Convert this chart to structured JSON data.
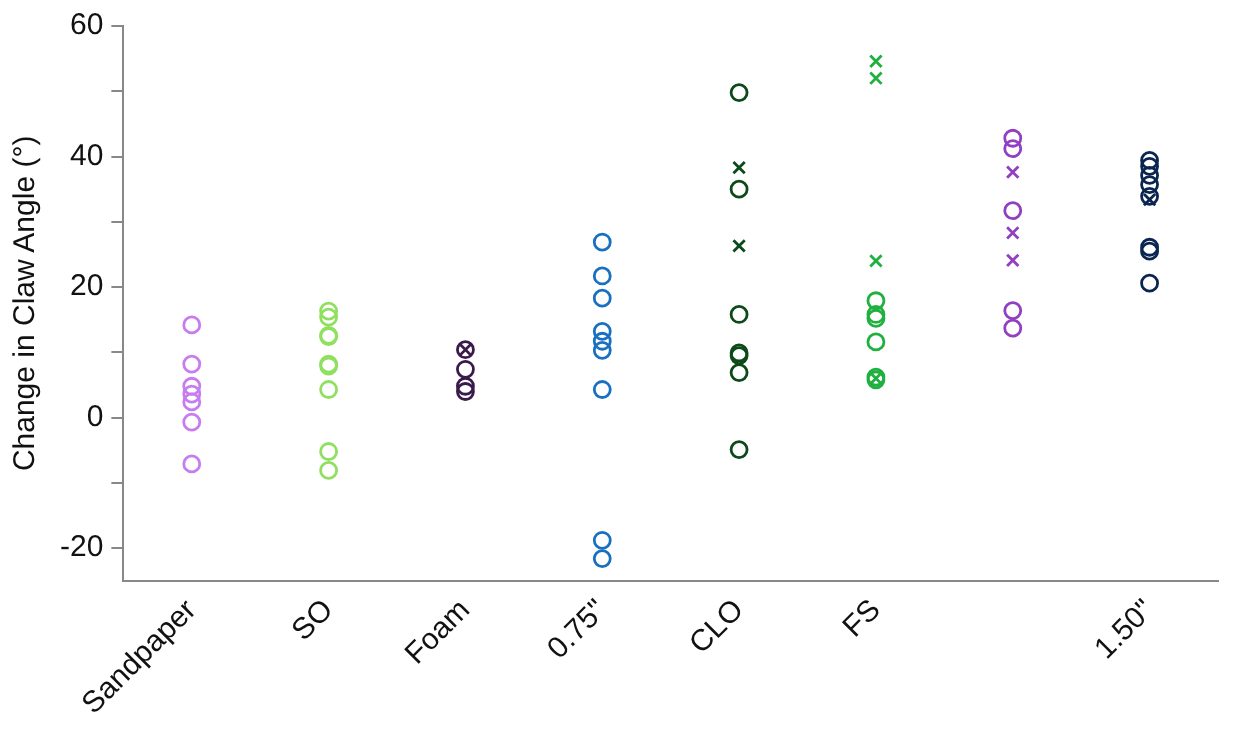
{
  "chart_data": {
    "type": "scatter",
    "ylabel": "Change in Claw Angle (°)",
    "categories": [
      "Sandpaper",
      "SO",
      "Foam",
      "0.75\"",
      "CLO",
      "FS",
      null,
      "1.50\""
    ],
    "ylim": [
      -25,
      60
    ],
    "yticks": [
      {
        "value": -20,
        "label": "-20"
      },
      {
        "value": -10,
        "label": null
      },
      0,
      {
        "value": 10,
        "label": null
      },
      20,
      {
        "value": 30,
        "label": null
      },
      40,
      {
        "value": 50,
        "label": null
      },
      60
    ],
    "grid": false,
    "legend": false,
    "series": [
      {
        "marker": "circle",
        "colors": [
          "#c77cf0",
          "#90e060",
          "#3a1a4a",
          "#1a70c0",
          "#0d4a1a",
          "#20b040",
          "#9040c0",
          "#0a2550"
        ],
        "values": [
          14.2,
          16.3,
          10.4,
          26.9,
          49.8,
          17.9,
          42.8,
          39.4
        ]
      },
      {
        "marker": "circle",
        "colors": [
          "#c77cf0",
          "#90e060",
          "#3a1a4a",
          "#1a70c0",
          "#0d4a1a",
          "#20b040",
          "#9040c0",
          "#0a2550"
        ],
        "values": [
          8.2,
          15.4,
          7.4,
          21.7,
          35.0,
          15.8,
          41.2,
          38.5
        ]
      },
      {
        "marker": "circle",
        "colors": [
          "#c77cf0",
          "#90e060",
          "#3a1a4a",
          "#1a70c0",
          "#0d4a1a",
          "#20b040",
          "#9040c0",
          "#0a2550"
        ],
        "values": [
          4.8,
          12.6,
          4.8,
          18.3,
          15.8,
          15.2,
          31.7,
          37.1
        ]
      },
      {
        "marker": "circle",
        "colors": [
          "#c77cf0",
          "#90e060",
          "#3a1a4a",
          "#1a70c0",
          "#0d4a1a",
          "#20b040",
          "#9040c0",
          "#0a2550"
        ],
        "values": [
          3.6,
          12.4,
          4.0,
          13.2,
          9.9,
          11.6,
          16.4,
          35.7
        ]
      },
      {
        "marker": "circle",
        "colors": [
          "#c77cf0",
          "#90e060",
          null,
          "#1a70c0",
          "#0d4a1a",
          "#20b040",
          "#9040c0",
          "#0a2550"
        ],
        "values": [
          2.4,
          8.2,
          null,
          11.7,
          9.5,
          6.2,
          13.7,
          33.9
        ]
      },
      {
        "marker": "circle",
        "colors": [
          "#c77cf0",
          "#90e060",
          null,
          "#1a70c0",
          "#0d4a1a",
          "#20b040",
          null,
          "#0a2550"
        ],
        "values": [
          -0.7,
          7.9,
          null,
          10.3,
          6.9,
          5.8,
          null,
          26.1
        ]
      },
      {
        "marker": "circle",
        "colors": [
          "#c77cf0",
          "#90e060",
          null,
          "#1a70c0",
          "#0d4a1a",
          null,
          null,
          "#0a2550"
        ],
        "values": [
          -7.1,
          4.3,
          null,
          4.3,
          -4.9,
          null,
          null,
          25.5
        ]
      },
      {
        "marker": "circle",
        "colors": [
          null,
          "#90e060",
          null,
          "#1a70c0",
          null,
          null,
          null,
          "#0a2550"
        ],
        "values": [
          null,
          -5.2,
          null,
          -18.8,
          null,
          null,
          null,
          20.6
        ]
      },
      {
        "marker": "circle",
        "colors": [
          null,
          "#90e060",
          null,
          "#1a70c0",
          null,
          null,
          null,
          null
        ],
        "values": [
          null,
          -8.1,
          null,
          -21.6,
          null,
          null,
          null,
          null
        ]
      },
      {
        "marker": "cross",
        "colors": [
          null,
          null,
          "#3a1a4a",
          null,
          "#0d4a1a",
          "#20b040",
          "#9040c0",
          "#0a2550"
        ],
        "values": [
          null,
          null,
          10.4,
          null,
          38.3,
          54.6,
          37.6,
          33.4
        ]
      },
      {
        "marker": "cross",
        "colors": [
          null,
          null,
          null,
          null,
          "#0d4a1a",
          "#20b040",
          "#9040c0",
          null
        ],
        "values": [
          null,
          null,
          null,
          null,
          26.3,
          52.0,
          28.3,
          null
        ]
      },
      {
        "marker": "cross",
        "colors": [
          null,
          null,
          null,
          null,
          null,
          "#20b040",
          "#9040c0",
          null
        ],
        "values": [
          null,
          null,
          null,
          null,
          null,
          24.0,
          24.1,
          null
        ]
      },
      {
        "marker": "cross",
        "colors": [
          null,
          null,
          null,
          null,
          null,
          "#20b040",
          null,
          null
        ],
        "values": [
          null,
          null,
          null,
          null,
          null,
          6.0,
          null,
          null
        ]
      }
    ]
  }
}
